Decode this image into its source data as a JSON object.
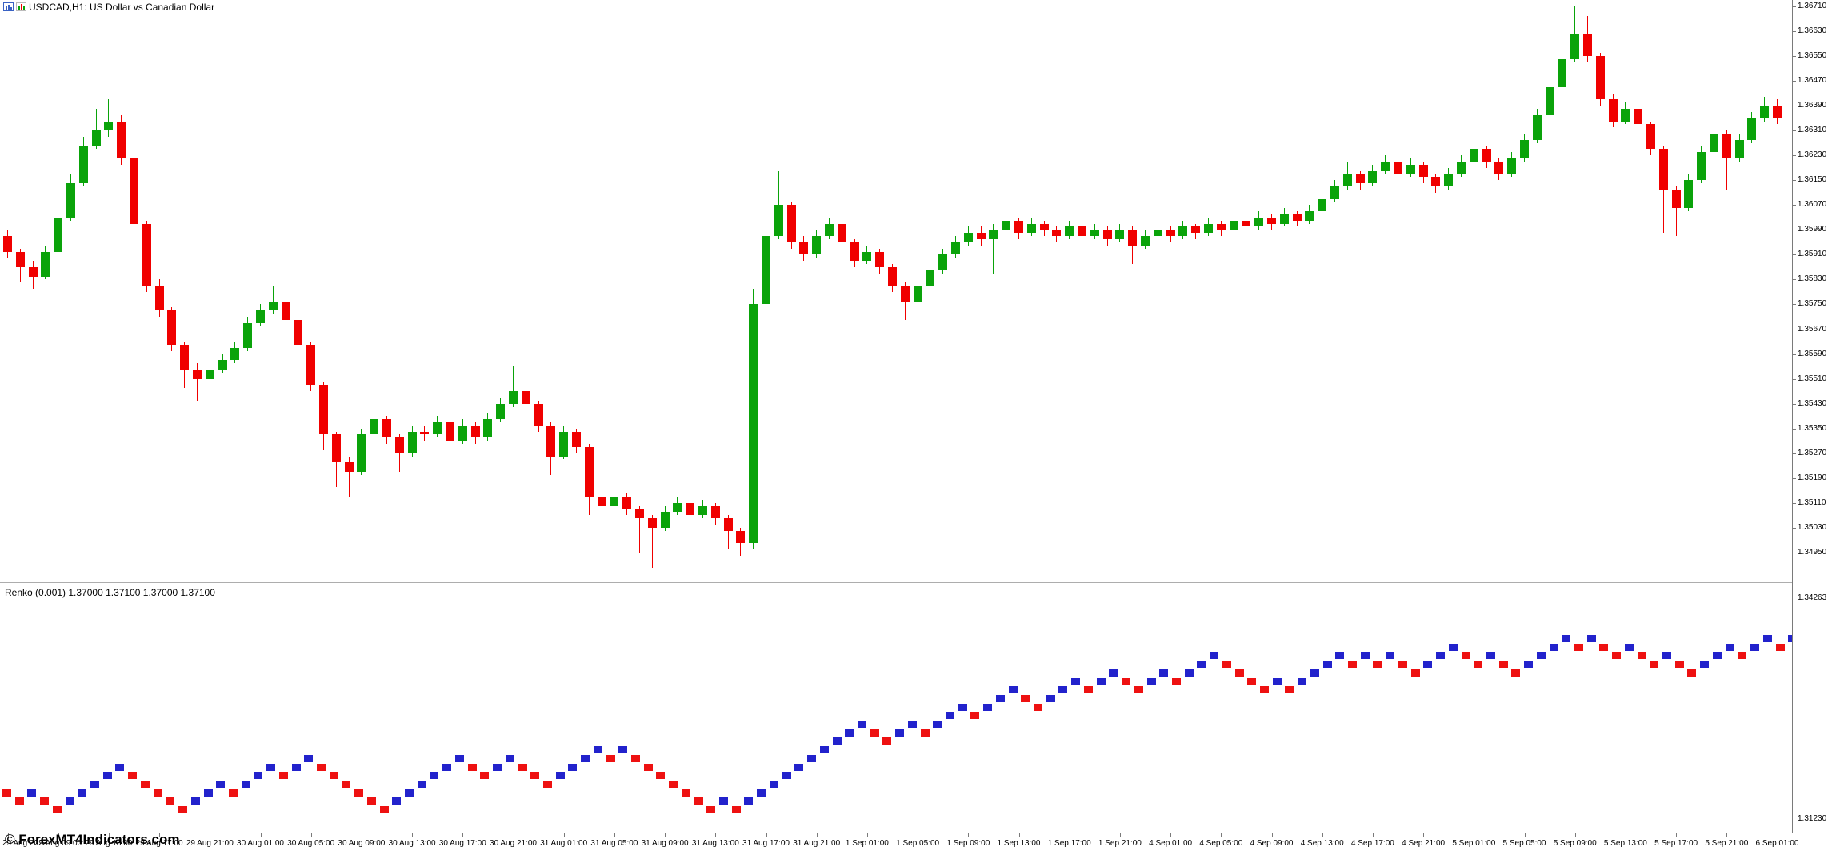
{
  "window": {
    "title": "USDCAD,H1: US Dollar vs Canadian Dollar"
  },
  "subwindow": {
    "indicator_label": "Renko (0.001) 1.37000 1.37100 1.37000 1.37100"
  },
  "watermark": "© ForexMT4Indicators.com",
  "icons": {
    "left": "chart-window-icon",
    "right": "mini-candles-icon"
  },
  "colors": {
    "background": "#FFFFFF",
    "bull_candle": "#0AA30A",
    "bear_candle": "#F00000",
    "renko_up": "#2222CC",
    "renko_down": "#EE1111",
    "axis_text": "#000000",
    "separator": "#ADADAD"
  },
  "chart_data": {
    "type": "candlestick",
    "symbol": "USDCAD",
    "timeframe": "H1",
    "title": "USDCAD,H1: US Dollar vs Canadian Dollar",
    "ylim": [
      1.349,
      1.3671
    ],
    "grid": false,
    "price_axis_labels": [
      "1.36710",
      "1.36630",
      "1.36550",
      "1.36470",
      "1.36390",
      "1.36310",
      "1.36230",
      "1.36150",
      "1.36070",
      "1.35990",
      "1.35910",
      "1.35830",
      "1.35750",
      "1.35670",
      "1.35590",
      "1.35510",
      "1.35430",
      "1.35350",
      "1.35270",
      "1.35190",
      "1.35110",
      "1.35030",
      "1.34950"
    ],
    "sub_axis_labels": [
      "1.34263",
      "1.31230"
    ],
    "time_axis_labels": [
      "29 Aug 2023",
      "29 Aug 09:00",
      "29 Aug 13:00",
      "29 Aug 17:00",
      "29 Aug 21:00",
      "30 Aug 01:00",
      "30 Aug 05:00",
      "30 Aug 09:00",
      "30 Aug 13:00",
      "30 Aug 17:00",
      "30 Aug 21:00",
      "31 Aug 01:00",
      "31 Aug 05:00",
      "31 Aug 09:00",
      "31 Aug 13:00",
      "31 Aug 17:00",
      "31 Aug 21:00",
      "1 Sep 01:00",
      "1 Sep 05:00",
      "1 Sep 09:00",
      "1 Sep 13:00",
      "1 Sep 17:00",
      "1 Sep 21:00",
      "4 Sep 01:00",
      "4 Sep 05:00",
      "4 Sep 09:00",
      "4 Sep 13:00",
      "4 Sep 17:00",
      "4 Sep 21:00",
      "5 Sep 01:00",
      "5 Sep 05:00",
      "5 Sep 09:00",
      "5 Sep 13:00",
      "5 Sep 17:00",
      "5 Sep 21:00",
      "6 Sep 01:00"
    ],
    "labels_every_n_candles": 4,
    "price_base": 1.3,
    "price_unit": 0.0001,
    "candles_ohlc": [
      [
        597,
        599,
        590,
        592
      ],
      [
        592,
        593,
        582,
        587
      ],
      [
        587,
        589,
        580,
        584
      ],
      [
        584,
        594,
        583,
        592
      ],
      [
        592,
        605,
        591,
        603
      ],
      [
        603,
        617,
        602,
        614
      ],
      [
        614,
        629,
        613,
        626
      ],
      [
        626,
        638,
        625,
        631
      ],
      [
        631,
        641,
        629,
        634
      ],
      [
        634,
        636,
        620,
        622
      ],
      [
        622,
        623,
        599,
        601
      ],
      [
        601,
        602,
        579,
        581
      ],
      [
        581,
        583,
        571,
        573
      ],
      [
        573,
        574,
        560,
        562
      ],
      [
        562,
        563,
        548,
        554
      ],
      [
        554,
        556,
        544,
        551
      ],
      [
        551,
        556,
        549,
        554
      ],
      [
        554,
        559,
        553,
        557
      ],
      [
        557,
        563,
        556,
        561
      ],
      [
        561,
        571,
        560,
        569
      ],
      [
        569,
        575,
        568,
        573
      ],
      [
        573,
        581,
        572,
        576
      ],
      [
        576,
        577,
        568,
        570
      ],
      [
        570,
        571,
        560,
        562
      ],
      [
        562,
        563,
        547,
        549
      ],
      [
        549,
        550,
        528,
        533
      ],
      [
        533,
        534,
        516,
        524
      ],
      [
        524,
        526,
        513,
        521
      ],
      [
        521,
        535,
        520,
        533
      ],
      [
        533,
        540,
        532,
        538
      ],
      [
        538,
        539,
        530,
        532
      ],
      [
        532,
        533,
        521,
        527
      ],
      [
        527,
        536,
        526,
        534
      ],
      [
        534,
        536,
        531,
        533
      ],
      [
        533,
        539,
        532,
        537
      ],
      [
        537,
        538,
        529,
        531
      ],
      [
        531,
        538,
        530,
        536
      ],
      [
        536,
        537,
        530,
        532
      ],
      [
        532,
        540,
        531,
        538
      ],
      [
        538,
        545,
        537,
        543
      ],
      [
        543,
        555,
        542,
        547
      ],
      [
        547,
        549,
        541,
        543
      ],
      [
        543,
        544,
        534,
        536
      ],
      [
        536,
        537,
        520,
        526
      ],
      [
        526,
        536,
        525,
        534
      ],
      [
        534,
        535,
        527,
        529
      ],
      [
        529,
        530,
        507,
        513
      ],
      [
        513,
        515,
        508,
        510
      ],
      [
        510,
        515,
        509,
        513
      ],
      [
        513,
        514,
        507,
        509
      ],
      [
        509,
        510,
        495,
        506
      ],
      [
        506,
        507,
        490,
        503
      ],
      [
        503,
        510,
        502,
        508
      ],
      [
        508,
        513,
        507,
        511
      ],
      [
        511,
        512,
        505,
        507
      ],
      [
        507,
        512,
        506,
        510
      ],
      [
        510,
        511,
        504,
        506
      ],
      [
        506,
        507,
        496,
        502
      ],
      [
        502,
        503,
        494,
        498
      ],
      [
        498,
        580,
        496,
        575
      ],
      [
        575,
        602,
        574,
        597
      ],
      [
        597,
        618,
        596,
        607
      ],
      [
        607,
        608,
        593,
        595
      ],
      [
        595,
        597,
        589,
        591
      ],
      [
        591,
        599,
        590,
        597
      ],
      [
        597,
        603,
        596,
        601
      ],
      [
        601,
        602,
        593,
        595
      ],
      [
        595,
        596,
        587,
        589
      ],
      [
        589,
        594,
        588,
        592
      ],
      [
        592,
        593,
        585,
        587
      ],
      [
        587,
        588,
        579,
        581
      ],
      [
        581,
        582,
        570,
        576
      ],
      [
        576,
        583,
        575,
        581
      ],
      [
        581,
        588,
        580,
        586
      ],
      [
        586,
        593,
        585,
        591
      ],
      [
        591,
        597,
        590,
        595
      ],
      [
        595,
        600,
        594,
        598
      ],
      [
        598,
        600,
        594,
        596
      ],
      [
        596,
        601,
        585,
        599
      ],
      [
        599,
        604,
        598,
        602
      ],
      [
        602,
        603,
        596,
        598
      ],
      [
        598,
        603,
        597,
        601
      ],
      [
        601,
        602,
        597,
        599
      ],
      [
        599,
        600,
        595,
        597
      ],
      [
        597,
        602,
        596,
        600
      ],
      [
        600,
        601,
        595,
        597
      ],
      [
        597,
        601,
        596,
        599
      ],
      [
        599,
        600,
        594,
        596
      ],
      [
        596,
        601,
        595,
        599
      ],
      [
        599,
        600,
        588,
        594
      ],
      [
        594,
        599,
        593,
        597
      ],
      [
        597,
        601,
        596,
        599
      ],
      [
        599,
        600,
        595,
        597
      ],
      [
        597,
        602,
        596,
        600
      ],
      [
        600,
        601,
        596,
        598
      ],
      [
        598,
        603,
        597,
        601
      ],
      [
        601,
        602,
        597,
        599
      ],
      [
        599,
        604,
        598,
        602
      ],
      [
        602,
        603,
        598,
        600
      ],
      [
        600,
        605,
        599,
        603
      ],
      [
        603,
        604,
        599,
        601
      ],
      [
        601,
        606,
        600,
        604
      ],
      [
        604,
        605,
        600,
        602
      ],
      [
        602,
        607,
        601,
        605
      ],
      [
        605,
        611,
        604,
        609
      ],
      [
        609,
        615,
        608,
        613
      ],
      [
        613,
        621,
        612,
        617
      ],
      [
        617,
        618,
        612,
        614
      ],
      [
        614,
        620,
        613,
        618
      ],
      [
        618,
        623,
        617,
        621
      ],
      [
        621,
        622,
        615,
        617
      ],
      [
        617,
        622,
        616,
        620
      ],
      [
        620,
        621,
        614,
        616
      ],
      [
        616,
        617,
        611,
        613
      ],
      [
        613,
        619,
        612,
        617
      ],
      [
        617,
        623,
        616,
        621
      ],
      [
        621,
        627,
        620,
        625
      ],
      [
        625,
        626,
        619,
        621
      ],
      [
        621,
        622,
        615,
        617
      ],
      [
        617,
        624,
        616,
        622
      ],
      [
        622,
        630,
        621,
        628
      ],
      [
        628,
        638,
        627,
        636
      ],
      [
        636,
        647,
        635,
        645
      ],
      [
        645,
        658,
        644,
        654
      ],
      [
        654,
        671,
        653,
        662
      ],
      [
        662,
        668,
        653,
        655
      ],
      [
        655,
        656,
        639,
        641
      ],
      [
        641,
        643,
        632,
        634
      ],
      [
        634,
        640,
        633,
        638
      ],
      [
        638,
        639,
        631,
        633
      ],
      [
        633,
        634,
        623,
        625
      ],
      [
        625,
        626,
        598,
        612
      ],
      [
        612,
        613,
        597,
        606
      ],
      [
        606,
        617,
        605,
        615
      ],
      [
        615,
        626,
        614,
        624
      ],
      [
        624,
        632,
        623,
        630
      ],
      [
        630,
        631,
        612,
        622
      ],
      [
        622,
        630,
        621,
        628
      ],
      [
        628,
        637,
        627,
        635
      ],
      [
        635,
        642,
        634,
        639
      ],
      [
        639,
        641,
        633,
        635
      ]
    ],
    "renko": {
      "brick_size": 0.001,
      "start_level": 3,
      "brick_directions": "ddudduuuuuddddduuuduuuduudddddduuuuuudduuddduuuududdddddduduuuuuuuuuudduuduuuduuudduuuduudduuduuudddduduuuudududduuuddudduuuududduddudduuuduuduuu"
    }
  }
}
